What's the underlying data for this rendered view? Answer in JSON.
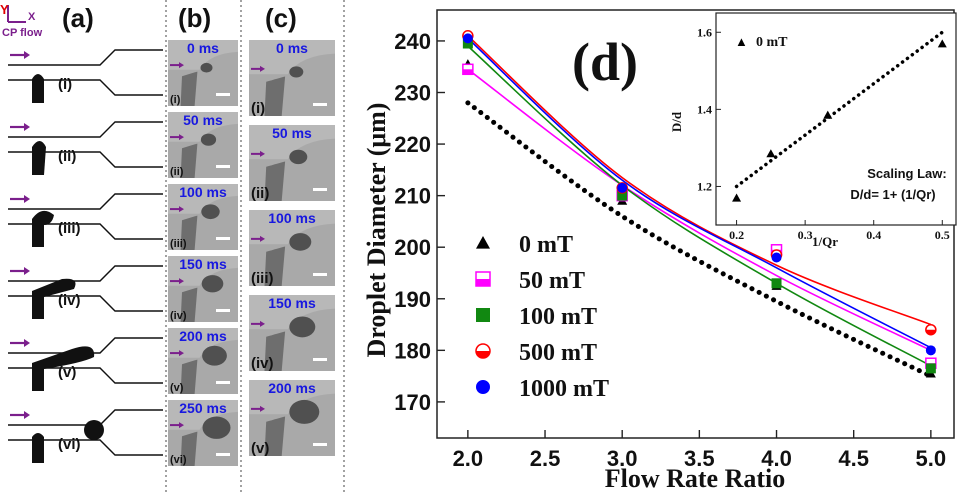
{
  "panels": {
    "a": {
      "label": "(a)",
      "axis_y": "Y",
      "axis_x": "X",
      "flow_label": "CP flow",
      "steps": [
        "(i)",
        "(ii)",
        "(iii)",
        "(iv)",
        "(v)",
        "(vi)"
      ]
    },
    "b": {
      "label": "(b)",
      "frames": [
        {
          "time": "0 ms",
          "step": "(i)"
        },
        {
          "time": "50 ms",
          "step": "(ii)"
        },
        {
          "time": "100 ms",
          "step": "(iii)"
        },
        {
          "time": "150 ms",
          "step": "(iv)"
        },
        {
          "time": "200 ms",
          "step": "(v)"
        },
        {
          "time": "250 ms",
          "step": "(vi)"
        }
      ]
    },
    "c": {
      "label": "(c)",
      "frames": [
        {
          "time": "0 ms",
          "step": "(i)"
        },
        {
          "time": "50 ms",
          "step": "(ii)"
        },
        {
          "time": "100 ms",
          "step": "(iii)"
        },
        {
          "time": "150 ms",
          "step": "(iv)"
        },
        {
          "time": "200 ms",
          "step": "(v)"
        }
      ]
    }
  },
  "colors": {
    "purple_arrow": "#7b1f8c",
    "time_label": "#1818e0",
    "frame_bg": "#a9a9a9",
    "scale_bar": "#ffffff"
  },
  "chart_data": [
    {
      "panel_label": "(d)",
      "type": "scatter",
      "xlabel": "Flow Rate Ratio",
      "ylabel": "Droplet Diameter (μm)",
      "xlim": [
        1.8,
        5.15
      ],
      "ylim": [
        163,
        246
      ],
      "xticks": [
        "2.0",
        "2.5",
        "3.0",
        "3.5",
        "4.0",
        "4.5",
        "5.0"
      ],
      "yticks": [
        "170",
        "180",
        "190",
        "200",
        "210",
        "220",
        "230",
        "240"
      ],
      "legend_position": "center-left",
      "series": [
        {
          "name": "0 mT",
          "color": "#000000",
          "marker": "triangle",
          "fit": "dotted",
          "x": [
            2,
            3,
            4,
            5
          ],
          "y": [
            235.5,
            209,
            192.5,
            175.5
          ],
          "fit_y": [
            228,
            206,
            189.5,
            175
          ]
        },
        {
          "name": "50 mT",
          "color": "#ff00ff",
          "marker": "half-square",
          "x": [
            2,
            3,
            4,
            5
          ],
          "y": [
            234.5,
            210,
            199.5,
            177.5
          ],
          "fit_y": [
            234.5,
            212,
            194.5,
            180
          ]
        },
        {
          "name": "100 mT",
          "color": "#118811",
          "marker": "square",
          "x": [
            2,
            3,
            4,
            5
          ],
          "y": [
            239.5,
            210,
            193,
            176.5
          ],
          "fit_y": [
            239,
            212,
            193,
            177
          ]
        },
        {
          "name": "500 mT",
          "color": "#ff0000",
          "marker": "half-circle",
          "x": [
            2,
            3,
            4,
            5
          ],
          "y": [
            241,
            211.5,
            198.5,
            184
          ],
          "fit_y": [
            241,
            213.5,
            196.5,
            185
          ]
        },
        {
          "name": "1000 mT",
          "color": "#0000ff",
          "marker": "circle",
          "x": [
            2,
            3,
            4,
            5
          ],
          "y": [
            240.5,
            211.5,
            198,
            180
          ],
          "fit_y": [
            240.5,
            213,
            196,
            180.5
          ]
        }
      ]
    },
    {
      "type": "scatter",
      "inset": true,
      "xlabel": "1/Qr",
      "ylabel": "D/d",
      "xlim": [
        0.17,
        0.52
      ],
      "ylim": [
        1.1,
        1.65
      ],
      "xticks": [
        "0.2",
        "0.3",
        "0.4",
        "0.5"
      ],
      "yticks": [
        "1.2",
        "1.4",
        "1.6"
      ],
      "legend_position": "top-left",
      "annotation_title": "Scaling Law:",
      "annotation_formula": "D/d= 1+ (1/Qr)",
      "series": [
        {
          "name": "0 mT",
          "color": "#000000",
          "marker": "triangle",
          "x": [
            0.2,
            0.25,
            0.333,
            0.5
          ],
          "y": [
            1.17,
            1.285,
            1.385,
            1.57
          ],
          "fit_x": [
            0.2,
            0.5
          ],
          "fit_y": [
            1.2,
            1.6
          ]
        }
      ]
    }
  ]
}
